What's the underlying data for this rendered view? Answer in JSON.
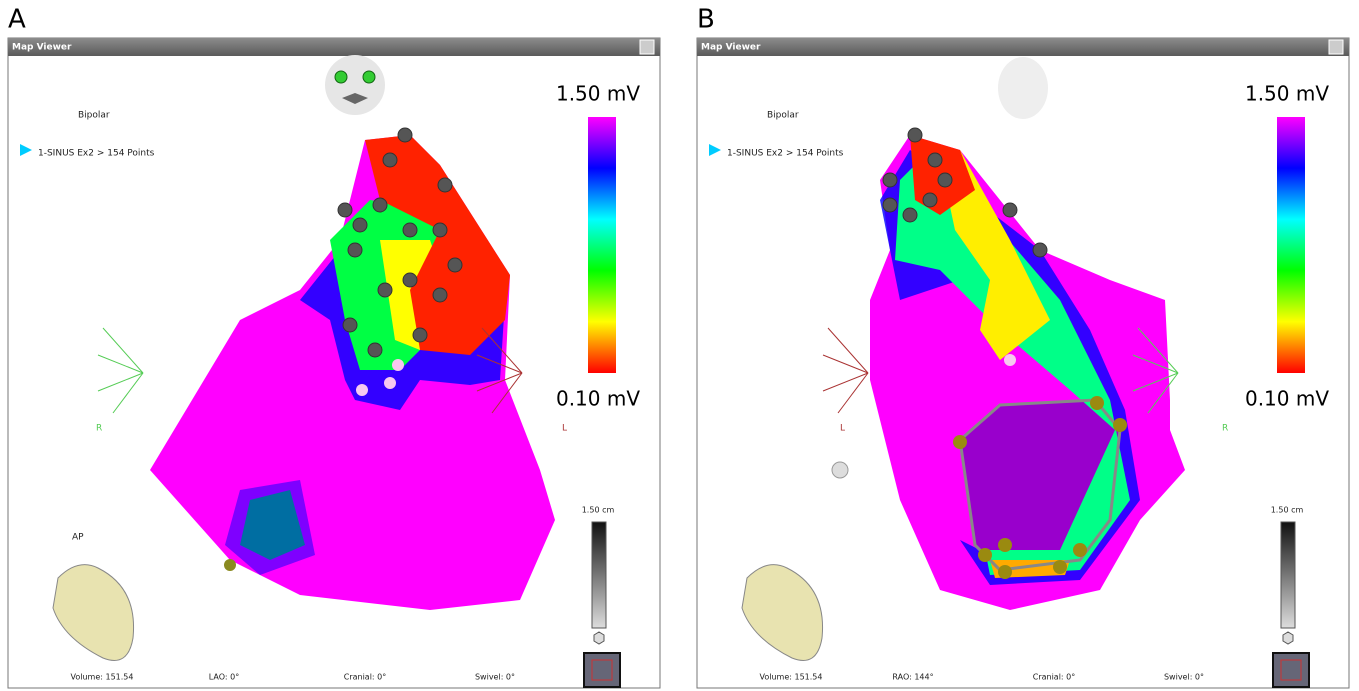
{
  "panels": [
    {
      "label": "A",
      "window_title": "Map Viewer",
      "map_type": "Bipolar",
      "map_name": "1-SINUS Ex2 > 154 Points",
      "scale_max": "1.50 mV",
      "scale_min": "0.10 mV",
      "axis_left": "R",
      "axis_right": "L",
      "view_label": "AP",
      "ruler": "1.50 cm",
      "status": [
        "Volume: 151.54",
        "LAO: 0°",
        "Cranial: 0°",
        "Swivel: 0°"
      ]
    },
    {
      "label": "B",
      "window_title": "Map Viewer",
      "map_type": "Bipolar",
      "map_name": "1-SINUS Ex2 > 154 Points",
      "scale_max": "1.50 mV",
      "scale_min": "0.10 mV",
      "axis_left": "L",
      "axis_right": "R",
      "ruler": "1.50 cm",
      "status": [
        "Volume: 151.54",
        "RAO: 144°",
        "Cranial: 0°",
        "Swivel: 0°"
      ]
    }
  ]
}
